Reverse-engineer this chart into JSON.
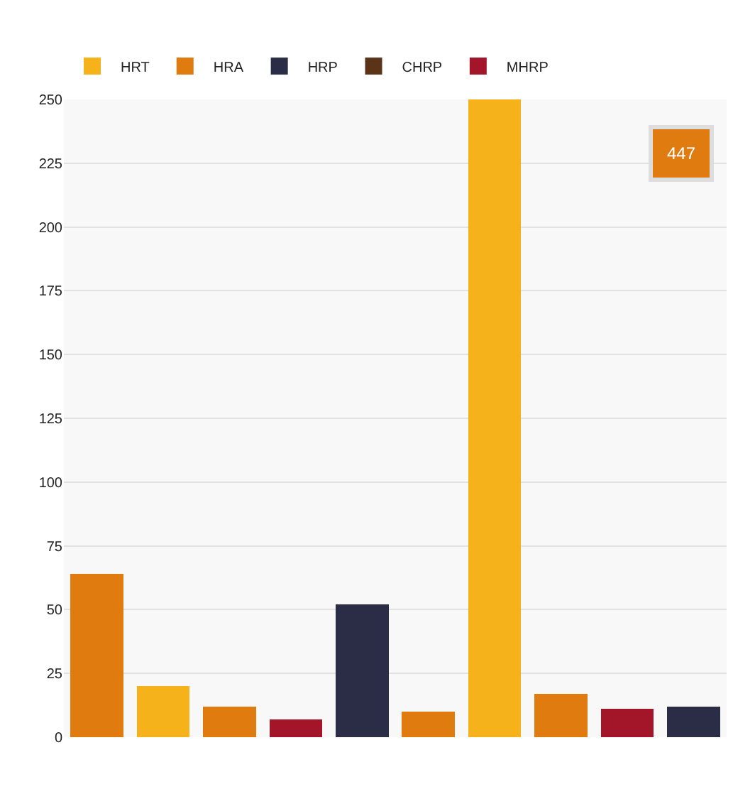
{
  "chart_data": {
    "type": "bar",
    "stacked": true,
    "categories": [
      null,
      null,
      null,
      null,
      null,
      null,
      null,
      null,
      null,
      null
    ],
    "series": [
      {
        "name": "MHRP",
        "color": "#a3162a",
        "values": [
          null,
          null,
          null,
          7,
          null,
          null,
          null,
          null,
          11,
          null
        ]
      },
      {
        "name": "CHRP",
        "color": "#5a3318",
        "values": [
          null,
          null,
          null,
          null,
          null,
          null,
          null,
          null,
          null,
          null
        ]
      },
      {
        "name": "HRP",
        "color": "#2a2d45",
        "values": [
          null,
          null,
          null,
          null,
          52,
          null,
          null,
          null,
          null,
          12
        ]
      },
      {
        "name": "HRA",
        "color": "#e07b10",
        "values": [
          64,
          null,
          12,
          null,
          null,
          10,
          null,
          17,
          null,
          null
        ]
      },
      {
        "name": "HRT",
        "color": "#f5b21a",
        "values": [
          null,
          20,
          null,
          null,
          null,
          null,
          250,
          null,
          null,
          null
        ]
      }
    ],
    "ylim": [
      0,
      250
    ],
    "yticks": [
      0,
      25,
      50,
      75,
      100,
      125,
      150,
      175,
      200,
      225,
      250
    ],
    "grid": "y",
    "legend": "top left",
    "tick_labels": "y",
    "annotations": [
      "447"
    ]
  }
}
